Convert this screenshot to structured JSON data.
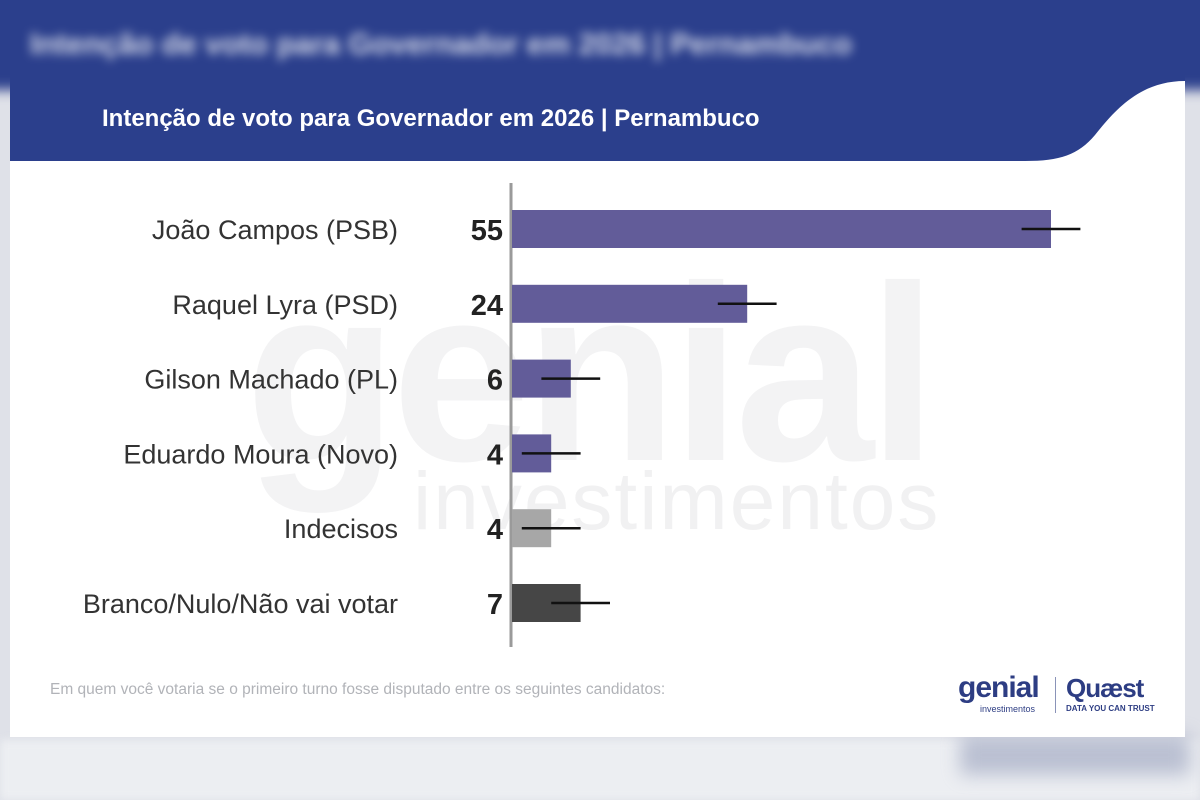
{
  "background": {
    "blurred_title": "Intenção de voto para Governador em 2026 | Pernambuco"
  },
  "header": {
    "title": "Intenção de voto para Governador em 2026 | Pernambuco",
    "color": "#2b3f8c"
  },
  "watermark": {
    "main": "genial",
    "sub": "investimentos"
  },
  "chart_data": {
    "type": "bar",
    "orientation": "horizontal",
    "title": "Intenção de voto para Governador em 2026 | Pernambuco",
    "categories": [
      "João Campos (PSB)",
      "Raquel Lyra (PSD)",
      "Gilson Machado (PL)",
      "Eduardo Moura (Novo)",
      "Indecisos",
      "Branco/Nulo/Não vai votar"
    ],
    "values": [
      55,
      24,
      6,
      4,
      4,
      7
    ],
    "value_labels": [
      "55",
      "24",
      "6",
      "4",
      "4",
      "7"
    ],
    "error_margin": [
      3,
      3,
      3,
      3,
      3,
      3
    ],
    "colors": [
      "#625c99",
      "#625c99",
      "#625c99",
      "#625c99",
      "#a7a7a7",
      "#464646"
    ],
    "xlim": [
      0,
      60
    ],
    "grid": false,
    "legend": "none"
  },
  "caption": "Em quem você votaria se o primeiro turno fosse disputado entre os seguintes candidatos:",
  "logos": {
    "genial": "genial",
    "genial_sub": "investimentos",
    "quaest": "Quæst",
    "quaest_sub": "DATA YOU CAN TRUST"
  }
}
